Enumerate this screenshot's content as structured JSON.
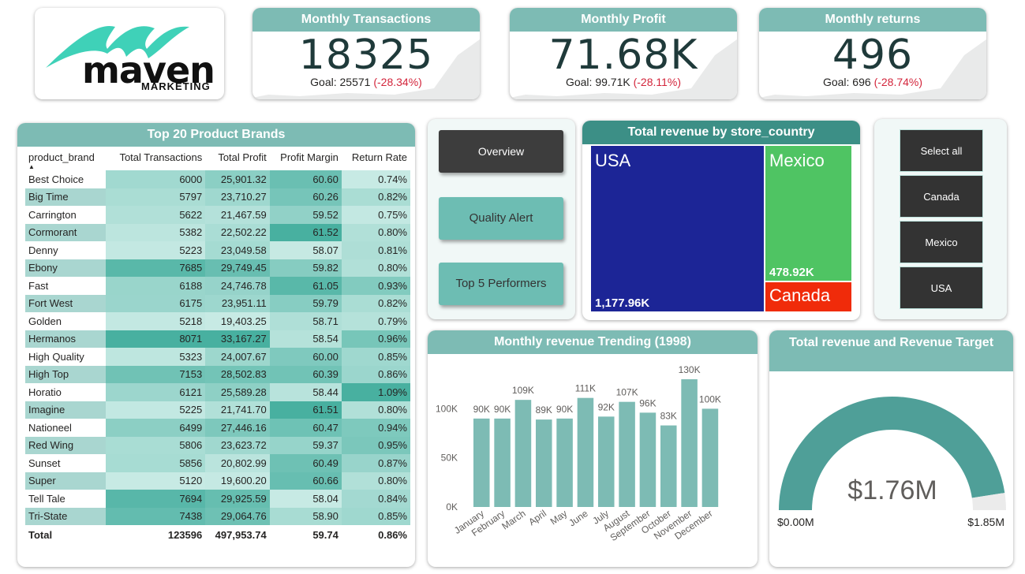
{
  "logo": {
    "word": "maven",
    "sub": "MARKETING"
  },
  "kpis": [
    {
      "title": "Monthly Transactions",
      "value": "18325",
      "goal_label": "Goal: 25571",
      "delta": "(-28.34%)"
    },
    {
      "title": "Monthly Profit",
      "value": "71.68K",
      "goal_label": "Goal: 99.71K",
      "delta": "(-28.11%)"
    },
    {
      "title": "Monthly returns",
      "value": "496",
      "goal_label": "Goal: 696",
      "delta": "(-28.74%)"
    }
  ],
  "brands_table": {
    "title": "Top 20 Product Brands",
    "columns": [
      "product_brand",
      "Total Transactions",
      "Total Profit",
      "Profit Margin",
      "Return Rate"
    ],
    "rows": [
      [
        "Best Choice",
        "6000",
        "25,901.32",
        "60.60",
        "0.74%"
      ],
      [
        "Big Time",
        "5797",
        "23,710.27",
        "60.26",
        "0.82%"
      ],
      [
        "Carrington",
        "5622",
        "21,467.59",
        "59.52",
        "0.75%"
      ],
      [
        "Cormorant",
        "5382",
        "22,502.22",
        "61.52",
        "0.80%"
      ],
      [
        "Denny",
        "5223",
        "23,049.58",
        "58.07",
        "0.81%"
      ],
      [
        "Ebony",
        "7685",
        "29,749.45",
        "59.82",
        "0.80%"
      ],
      [
        "Fast",
        "6188",
        "24,746.78",
        "61.05",
        "0.93%"
      ],
      [
        "Fort West",
        "6175",
        "23,951.11",
        "59.79",
        "0.82%"
      ],
      [
        "Golden",
        "5218",
        "19,403.25",
        "58.71",
        "0.79%"
      ],
      [
        "Hermanos",
        "8071",
        "33,167.27",
        "58.54",
        "0.96%"
      ],
      [
        "High Quality",
        "5323",
        "24,007.67",
        "60.00",
        "0.85%"
      ],
      [
        "High Top",
        "7153",
        "28,502.83",
        "60.39",
        "0.86%"
      ],
      [
        "Horatio",
        "6121",
        "25,589.28",
        "58.44",
        "1.09%"
      ],
      [
        "Imagine",
        "5225",
        "21,741.70",
        "61.51",
        "0.80%"
      ],
      [
        "Nationeel",
        "6499",
        "27,446.16",
        "60.47",
        "0.94%"
      ],
      [
        "Red Wing",
        "5806",
        "23,623.72",
        "59.37",
        "0.95%"
      ],
      [
        "Sunset",
        "5856",
        "20,802.99",
        "60.49",
        "0.87%"
      ],
      [
        "Super",
        "5120",
        "19,600.20",
        "60.66",
        "0.80%"
      ],
      [
        "Tell Tale",
        "7694",
        "29,925.59",
        "58.04",
        "0.84%"
      ],
      [
        "Tri-State",
        "7438",
        "29,064.76",
        "58.90",
        "0.85%"
      ]
    ],
    "total": [
      "Total",
      "123596",
      "497,953.74",
      "59.74",
      "0.86%"
    ]
  },
  "nav": {
    "overview": "Overview",
    "quality": "Quality Alert",
    "top5": "Top 5 Performers"
  },
  "treemap": {
    "title": "Total revenue by store_country",
    "items": [
      {
        "name": "USA",
        "value": "1,177.96K",
        "raw": 1177.96,
        "color": "#1c2596"
      },
      {
        "name": "Mexico",
        "value": "478.92K",
        "raw": 478.92,
        "color": "#4fc463"
      },
      {
        "name": "Canada",
        "value": "",
        "raw": 103.0,
        "color": "#f02b0a"
      }
    ]
  },
  "slicer": {
    "items": [
      "Select all",
      "Canada",
      "Mexico",
      "USA"
    ]
  },
  "chart_data": [
    {
      "type": "bar",
      "title": "Monthly revenue Trending (1998)",
      "categories": [
        "January",
        "February",
        "March",
        "April",
        "May",
        "June",
        "July",
        "August",
        "September",
        "October",
        "November",
        "December"
      ],
      "values": [
        90,
        90,
        109,
        89,
        90,
        111,
        92,
        107,
        96,
        83,
        130,
        100
      ],
      "labels": [
        "90K",
        "90K",
        "109K",
        "89K",
        "90K",
        "111K",
        "92K",
        "107K",
        "96K",
        "83K",
        "130K",
        "100K"
      ],
      "yticks": [
        "0K",
        "50K",
        "100K"
      ],
      "ylim": [
        0,
        130
      ],
      "color": "#7dbbb4"
    },
    {
      "type": "gauge",
      "title": "Total revenue and Revenue Target",
      "value": 1.76,
      "min": 0,
      "max": 1.85,
      "value_label": "$1.76M",
      "min_label": "$0.00M",
      "max_label": "$1.85M",
      "color": "#4f9f98"
    }
  ]
}
